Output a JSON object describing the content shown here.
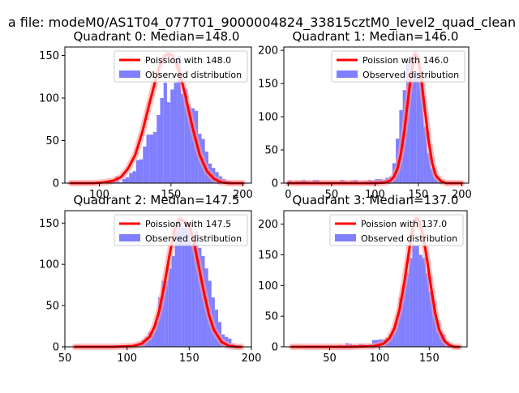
{
  "figure": {
    "suptitle": "a file: modeM0/AS1T04_077T01_9000004824_33815cztM0_level2_quad_clean"
  },
  "colors": {
    "hist": "#7f7fff",
    "poisson": "#ff0000",
    "poisson_glow": "#ff9a9a"
  },
  "chart_data": [
    {
      "type": "bar",
      "title": "Quadrant 0: Median=148.0",
      "median": 148.0,
      "xlim": [
        76,
        206
      ],
      "ylim": [
        0,
        160
      ],
      "xticks": [
        100,
        150,
        200
      ],
      "yticks": [
        0,
        50,
        100,
        150
      ],
      "bin_edges": [
        80,
        82.4,
        84.8,
        87.2,
        89.6,
        92,
        94.4,
        96.8,
        99.2,
        101.6,
        104,
        106.4,
        108.8,
        111.2,
        113.6,
        116,
        118.4,
        120.8,
        123.2,
        125.6,
        128,
        130.4,
        132.8,
        135.2,
        137.6,
        140,
        142.4,
        144.8,
        147.2,
        149.6,
        152,
        154.4,
        156.8,
        159.2,
        161.6,
        164,
        166.4,
        168.8,
        171.2,
        173.6,
        176,
        178.4,
        180.8,
        183.2,
        185.6,
        188,
        190.4,
        192.8,
        195.2,
        197.6,
        200
      ],
      "counts": [
        1,
        1,
        0,
        0,
        0,
        1,
        1,
        0,
        0,
        2,
        0,
        1,
        2,
        8,
        1,
        5,
        7,
        12,
        14,
        27,
        28,
        43,
        57,
        57,
        60,
        80,
        100,
        118,
        95,
        110,
        118,
        150,
        105,
        110,
        90,
        88,
        85,
        58,
        52,
        37,
        23,
        18,
        13,
        8,
        5,
        3,
        2,
        0,
        0,
        1
      ],
      "poisson_x": [
        80,
        88,
        96,
        104,
        110,
        115,
        120,
        125,
        130,
        135,
        140,
        143,
        146,
        148,
        150,
        153,
        156,
        160,
        165,
        170,
        175,
        180,
        185,
        190,
        195,
        200
      ],
      "poisson_y": [
        0,
        0,
        0,
        1,
        3,
        7,
        17,
        33,
        60,
        94,
        126,
        142,
        150,
        152,
        151,
        144,
        130,
        103,
        65,
        33,
        14,
        5,
        1,
        0,
        0,
        0
      ],
      "legend": [
        "Poission with 148.0",
        "Observed distribution"
      ]
    },
    {
      "type": "bar",
      "title": "Quadrant 1: Median=146.0",
      "median": 146.0,
      "xlim": [
        -5,
        208
      ],
      "ylim": [
        0,
        205
      ],
      "xticks": [
        0,
        50,
        100,
        150,
        200
      ],
      "yticks": [
        0,
        50,
        100,
        150,
        200
      ],
      "bin_edges": [
        0,
        4,
        8,
        12,
        16,
        20,
        24,
        28,
        32,
        36,
        40,
        44,
        48,
        52,
        56,
        60,
        64,
        68,
        72,
        76,
        80,
        84,
        88,
        92,
        96,
        100,
        104,
        108,
        112,
        116,
        120,
        124,
        128,
        132,
        136,
        140,
        144,
        148,
        152,
        156,
        160,
        164,
        168,
        172,
        176,
        180,
        184,
        188,
        192,
        196,
        200
      ],
      "counts": [
        4,
        1,
        3,
        3,
        5,
        3,
        2,
        5,
        5,
        1,
        1,
        2,
        1,
        2,
        2,
        5,
        3,
        1,
        4,
        5,
        1,
        2,
        3,
        5,
        4,
        6,
        6,
        5,
        8,
        10,
        30,
        67,
        110,
        140,
        185,
        190,
        170,
        160,
        150,
        85,
        45,
        22,
        10,
        4,
        1,
        0,
        0,
        0,
        0,
        0
      ],
      "poisson_x": [
        0,
        60,
        100,
        112,
        118,
        122,
        126,
        130,
        134,
        138,
        142,
        146,
        150,
        154,
        158,
        162,
        166,
        170,
        176,
        182,
        190,
        200
      ],
      "poisson_y": [
        0,
        0,
        0,
        1,
        4,
        10,
        22,
        45,
        80,
        125,
        168,
        195,
        188,
        150,
        105,
        62,
        30,
        12,
        3,
        0,
        0,
        0
      ],
      "legend": [
        "Poission with 146.0",
        "Observed distribution"
      ]
    },
    {
      "type": "bar",
      "title": "Quadrant 2: Median=147.5",
      "median": 147.5,
      "xlim": [
        50,
        200
      ],
      "ylim": [
        0,
        165
      ],
      "xticks": [
        50,
        100,
        150,
        200
      ],
      "yticks": [
        0,
        50,
        100,
        150
      ],
      "bin_edges": [
        58,
        60.68,
        63.36,
        66.04,
        68.72,
        71.4,
        74.08,
        76.76,
        79.44,
        82.12,
        84.8,
        87.48,
        90.16,
        92.84,
        95.52,
        98.2,
        100.88,
        103.56,
        106.24,
        108.92,
        111.6,
        114.28,
        116.96,
        119.64,
        122.32,
        125,
        127.68,
        130.36,
        133.04,
        135.72,
        138.4,
        141.08,
        143.76,
        146.44,
        149.12,
        151.8,
        154.48,
        157.16,
        159.84,
        162.52,
        165.2,
        167.88,
        170.56,
        173.24,
        175.92,
        178.6,
        181.28,
        183.96,
        186.64,
        189.32,
        192
      ],
      "counts": [
        1,
        0,
        0,
        0,
        0,
        0,
        0,
        0,
        0,
        0,
        0,
        0,
        0,
        0,
        0,
        0,
        0,
        0,
        1,
        2,
        8,
        12,
        18,
        18,
        30,
        60,
        80,
        80,
        95,
        110,
        140,
        150,
        145,
        152,
        150,
        135,
        140,
        120,
        110,
        95,
        80,
        60,
        45,
        30,
        15,
        12,
        10,
        4,
        2,
        1
      ],
      "poisson_x": [
        58,
        90,
        105,
        112,
        118,
        122,
        126,
        130,
        134,
        138,
        142,
        146,
        148,
        150,
        154,
        158,
        162,
        166,
        170,
        176,
        182,
        188,
        192
      ],
      "poisson_y": [
        0,
        0,
        1,
        4,
        12,
        24,
        44,
        75,
        110,
        140,
        155,
        152,
        150,
        148,
        125,
        95,
        65,
        38,
        20,
        6,
        1,
        0,
        0
      ],
      "legend": [
        "Poission with 147.5",
        "Observed distribution"
      ]
    },
    {
      "type": "bar",
      "title": "Quadrant 3: Median=137.0",
      "median": 137.0,
      "xlim": [
        4,
        188
      ],
      "ylim": [
        0,
        222
      ],
      "xticks": [
        50,
        100,
        150
      ],
      "yticks": [
        0,
        50,
        100,
        150,
        200
      ],
      "bin_edges": [
        12,
        15.36,
        18.72,
        22.08,
        25.44,
        28.8,
        32.16,
        35.52,
        38.88,
        42.24,
        45.6,
        48.96,
        52.32,
        55.68,
        59.04,
        62.4,
        65.76,
        69.12,
        72.48,
        75.84,
        79.2,
        82.56,
        85.92,
        89.28,
        92.64,
        96,
        99.36,
        102.72,
        106.08,
        109.44,
        112.8,
        116.16,
        119.52,
        122.88,
        126.24,
        129.6,
        132.96,
        136.32,
        139.68,
        143.04,
        146.4,
        149.76,
        153.12,
        156.48,
        159.84,
        163.2,
        166.56,
        169.92,
        173.28,
        176.64,
        180
      ],
      "counts": [
        1,
        0,
        0,
        0,
        0,
        0,
        0,
        0,
        0,
        0,
        0,
        0,
        2,
        1,
        3,
        2,
        6,
        5,
        3,
        2,
        5,
        4,
        3,
        4,
        11,
        11,
        12,
        12,
        15,
        20,
        30,
        47,
        80,
        100,
        120,
        145,
        165,
        165,
        150,
        145,
        120,
        90,
        70,
        40,
        22,
        20,
        8,
        3,
        2,
        0
      ],
      "poisson_x": [
        12,
        70,
        95,
        104,
        110,
        115,
        120,
        125,
        130,
        134,
        137,
        140,
        144,
        148,
        152,
        156,
        160,
        165,
        170,
        175,
        180
      ],
      "poisson_y": [
        0,
        0,
        1,
        5,
        14,
        30,
        60,
        105,
        160,
        200,
        210,
        205,
        180,
        140,
        95,
        55,
        28,
        10,
        3,
        0,
        0
      ],
      "legend": [
        "Poission with 137.0",
        "Observed distribution"
      ]
    }
  ]
}
